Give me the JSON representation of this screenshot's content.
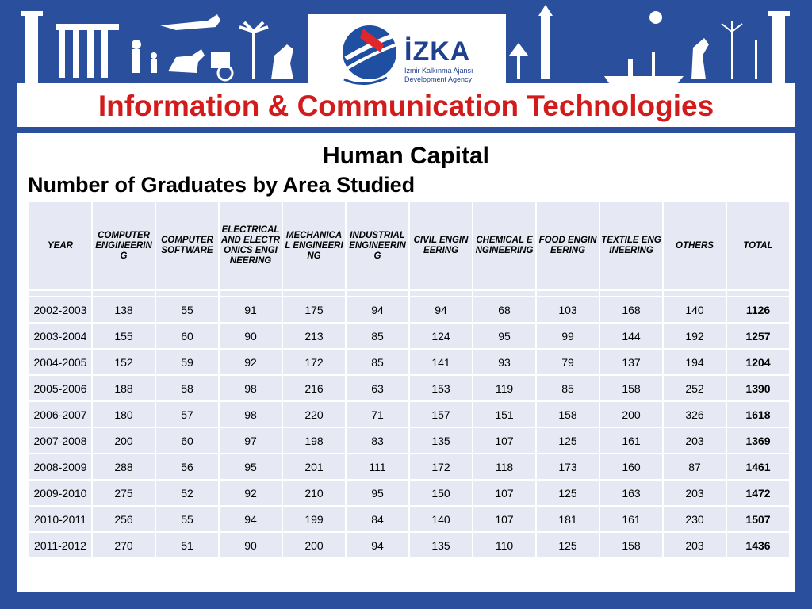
{
  "header": {
    "logo_name": "İZKA",
    "logo_subtitle": "İzmir Kalkınma Ajansı Development Agency",
    "title": "Information & Communication Technologies"
  },
  "section": {
    "title": "Human Capital",
    "table_title": "Number of Graduates by Area Studied"
  },
  "table": {
    "columns": [
      "YEAR",
      "COMPUTER ENGINEERING",
      "COMPUTER SOFTWARE",
      "ELECTRICAL AND ELECTRONICS ENGINEERING",
      "MECHANICAL ENGINEERING",
      "INDUSTRIAL ENGINEERING",
      "CIVIL ENGINEERING",
      "CHEMICAL ENGINEERING",
      "FOOD ENGINEERING",
      "TEXTILE ENGINEERING",
      "OTHERS",
      "TOTAL"
    ],
    "rows": [
      [
        "2002-2003",
        "138",
        "55",
        "91",
        "175",
        "94",
        "94",
        "68",
        "103",
        "168",
        "140",
        "1126"
      ],
      [
        "2003-2004",
        "155",
        "60",
        "90",
        "213",
        "85",
        "124",
        "95",
        "99",
        "144",
        "192",
        "1257"
      ],
      [
        "2004-2005",
        "152",
        "59",
        "92",
        "172",
        "85",
        "141",
        "93",
        "79",
        "137",
        "194",
        "1204"
      ],
      [
        "2005-2006",
        "188",
        "58",
        "98",
        "216",
        "63",
        "153",
        "119",
        "85",
        "158",
        "252",
        "1390"
      ],
      [
        "2006-2007",
        "180",
        "57",
        "98",
        "220",
        "71",
        "157",
        "151",
        "158",
        "200",
        "326",
        "1618"
      ],
      [
        "2007-2008",
        "200",
        "60",
        "97",
        "198",
        "83",
        "135",
        "107",
        "125",
        "161",
        "203",
        "1369"
      ],
      [
        "2008-2009",
        "288",
        "56",
        "95",
        "201",
        "111",
        "172",
        "118",
        "173",
        "160",
        "87",
        "1461"
      ],
      [
        "2009-2010",
        "275",
        "52",
        "92",
        "210",
        "95",
        "150",
        "107",
        "125",
        "163",
        "203",
        "1472"
      ],
      [
        "2010-2011",
        "256",
        "55",
        "94",
        "199",
        "84",
        "140",
        "107",
        "181",
        "161",
        "230",
        "1507"
      ],
      [
        "2011-2012",
        "270",
        "51",
        "90",
        "200",
        "94",
        "135",
        "110",
        "125",
        "158",
        "203",
        "1436"
      ]
    ]
  },
  "colors": {
    "frame_blue": "#2a4f9c",
    "title_red": "#d21c1c",
    "cell_bg": "#e6e8f3"
  }
}
